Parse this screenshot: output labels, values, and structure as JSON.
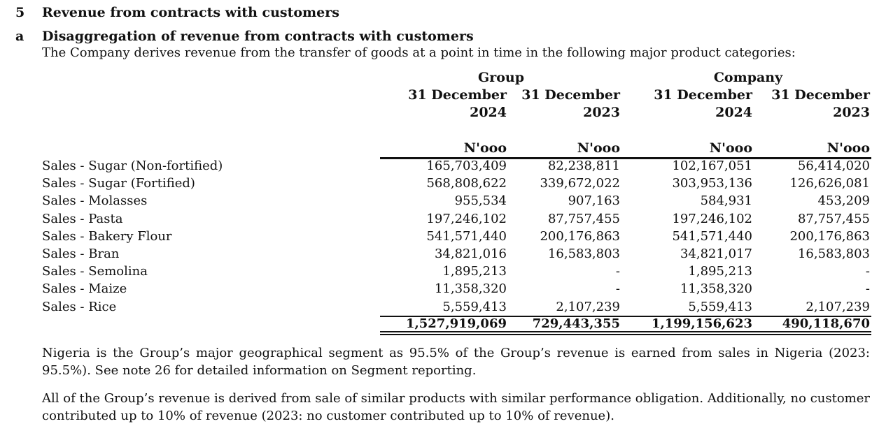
{
  "section": {
    "number": "5",
    "title": "Revenue from contracts with customers"
  },
  "subsection": {
    "letter": "a",
    "title": "Disaggregation of revenue from contracts with customers",
    "intro": "The Company derives revenue from the transfer of goods at a point in time in the following major product categories:"
  },
  "table": {
    "group_header": "Group",
    "company_header": "Company",
    "columns": [
      {
        "line1": "31 December",
        "line2": "2024",
        "unit": "N'ooo"
      },
      {
        "line1": "31 December",
        "line2": "2023",
        "unit": "N'ooo"
      },
      {
        "line1": "31 December",
        "line2": "2024",
        "unit": "N'ooo"
      },
      {
        "line1": "31 December",
        "line2": "2023",
        "unit": "N'ooo"
      }
    ],
    "rows": [
      {
        "label": "Sales - Sugar (Non-fortified)",
        "values": [
          "165,703,409",
          "82,238,811",
          "102,167,051",
          "56,414,020"
        ]
      },
      {
        "label": "Sales - Sugar (Fortified)",
        "values": [
          "568,808,622",
          "339,672,022",
          "303,953,136",
          "126,626,081"
        ]
      },
      {
        "label": "Sales - Molasses",
        "values": [
          "955,534",
          "907,163",
          "584,931",
          "453,209"
        ]
      },
      {
        "label": "Sales - Pasta",
        "values": [
          "197,246,102",
          "87,757,455",
          "197,246,102",
          "87,757,455"
        ]
      },
      {
        "label": "Sales - Bakery Flour",
        "values": [
          "541,571,440",
          "200,176,863",
          "541,571,440",
          "200,176,863"
        ]
      },
      {
        "label": "Sales - Bran",
        "values": [
          "34,821,016",
          "16,583,803",
          "34,821,017",
          "16,583,803"
        ]
      },
      {
        "label": "Sales - Semolina",
        "values": [
          "1,895,213",
          "-",
          "1,895,213",
          "-"
        ]
      },
      {
        "label": "Sales - Maize",
        "values": [
          "11,358,320",
          "-",
          "11,358,320",
          "-"
        ]
      },
      {
        "label": "Sales - Rice",
        "values": [
          "5,559,413",
          "2,107,239",
          "5,559,413",
          "2,107,239"
        ]
      }
    ],
    "totals": [
      "1,527,919,069",
      "729,443,355",
      "1,199,156,623",
      "490,118,670"
    ]
  },
  "notes": [
    "Nigeria is the Group’s major geographical segment as 95.5% of the Group’s revenue is earned from sales in Nigeria (2023: 95.5%). See note 26 for detailed information on Segment reporting.",
    "All of the Group’s revenue is derived from sale of similar products with similar performance obligation. Additionally, no customer contributed up to 10% of revenue (2023: no customer contributed up to 10% of revenue)."
  ]
}
